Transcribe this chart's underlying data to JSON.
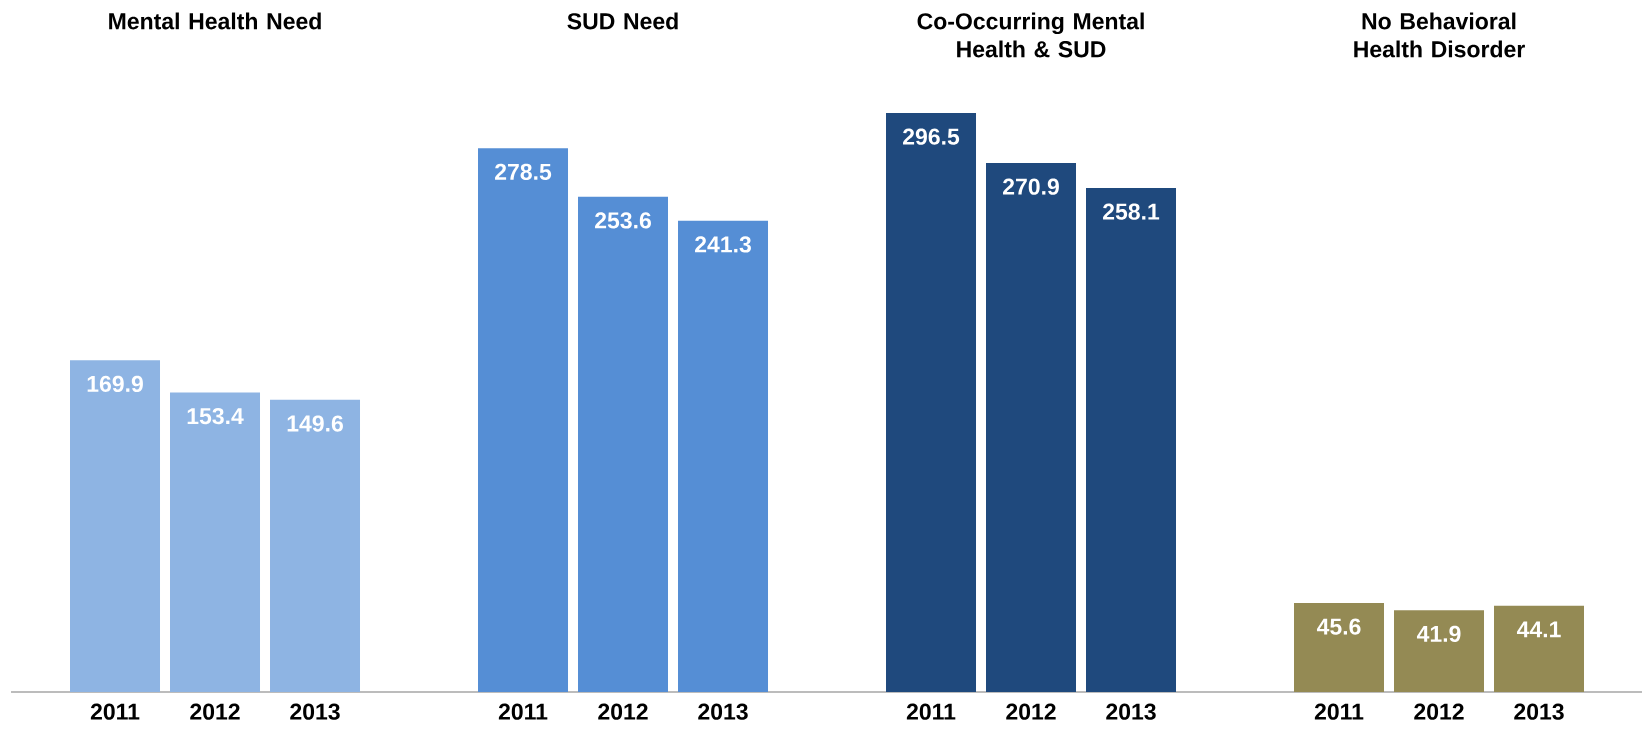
{
  "chart_data": [
    {
      "type": "bar",
      "title": "Mental Health Need",
      "categories": [
        "2011",
        "2012",
        "2013"
      ],
      "values": [
        169.9,
        153.4,
        149.6
      ],
      "color": "#8eb4e3",
      "data_labels": true
    },
    {
      "type": "bar",
      "title": "SUD Need",
      "categories": [
        "2011",
        "2012",
        "2013"
      ],
      "values": [
        278.5,
        253.6,
        241.3
      ],
      "color": "#558ed5",
      "data_labels": true
    },
    {
      "type": "bar",
      "title": "Co-Occurring Mental Health & SUD",
      "categories": [
        "2011",
        "2012",
        "2013"
      ],
      "values": [
        296.5,
        270.9,
        258.1
      ],
      "color": "#1f497d",
      "data_labels": true
    },
    {
      "type": "bar",
      "title": "No Behavioral Health Disorder",
      "categories": [
        "2011",
        "2012",
        "2013"
      ],
      "values": [
        45.6,
        41.9,
        44.1
      ],
      "color": "#948a54",
      "data_labels": true
    }
  ]
}
